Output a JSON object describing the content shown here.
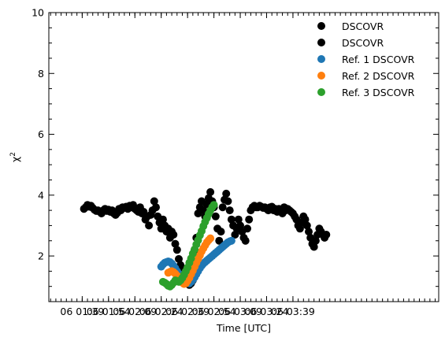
{
  "chart_data": {
    "type": "scatter",
    "title": "",
    "xlabel": "Time [UTC]",
    "ylabel": "χ",
    "ylabel_superscript": "2",
    "xlim": [
      80,
      302
    ],
    "ylim": [
      0.5,
      10
    ],
    "x_unit": "minutes after 00:00 UTC",
    "x_ticks": [
      {
        "value": 99,
        "label": "06 01:39"
      },
      {
        "value": 114,
        "label": "06 01:54"
      },
      {
        "value": 129,
        "label": "06 02:09"
      },
      {
        "value": 144,
        "label": "06 02:24"
      },
      {
        "value": 159,
        "label": "06 02:39"
      },
      {
        "value": 174,
        "label": "06 02:54"
      },
      {
        "value": 189,
        "label": "06 03:09"
      },
      {
        "value": 204,
        "label": "06 03:24"
      },
      {
        "value": 219,
        "label": "06 03:39"
      }
    ],
    "y_ticks": [
      {
        "value": 2,
        "label": "2"
      },
      {
        "value": 4,
        "label": "4"
      },
      {
        "value": 6,
        "label": "6"
      },
      {
        "value": 8,
        "label": "8"
      },
      {
        "value": 10,
        "label": "10"
      }
    ],
    "legend_position": "top-right",
    "series": [
      {
        "name": "DSCOVR",
        "color": "#000000",
        "x": [
          100,
          101,
          102,
          103,
          104,
          105,
          106,
          107,
          108,
          109,
          110,
          111,
          112,
          113,
          114,
          115,
          116,
          117,
          118,
          119,
          120,
          121,
          122,
          123,
          124,
          125,
          126,
          127,
          128,
          129,
          130,
          131,
          132,
          133,
          134,
          135,
          136,
          137,
          138,
          139,
          140,
          141,
          142,
          143,
          144,
          145,
          146,
          147,
          148,
          149,
          150,
          151,
          152,
          153,
          154,
          155,
          156,
          157,
          158,
          159,
          160,
          161,
          162,
          163,
          164,
          165,
          166,
          167,
          168,
          169,
          170,
          171,
          172,
          173,
          174,
          175,
          176,
          177,
          178,
          179,
          180,
          181,
          182,
          183,
          184,
          185,
          186,
          187,
          188,
          189,
          190,
          191,
          192,
          193,
          194,
          195,
          196,
          197,
          198,
          199,
          200,
          201,
          202,
          203,
          204,
          205,
          206,
          207,
          208,
          209,
          210,
          211,
          212,
          213,
          214,
          215,
          216,
          217,
          218,
          219,
          220,
          221,
          222,
          223,
          224,
          225,
          226,
          227,
          228,
          229,
          230,
          231,
          232,
          233,
          234,
          235,
          236,
          237,
          238
        ],
        "y": [
          3.55,
          3.6,
          3.68,
          3.62,
          3.65,
          3.58,
          3.52,
          3.48,
          3.5,
          3.45,
          3.4,
          3.5,
          3.55,
          3.48,
          3.52,
          3.45,
          3.5,
          3.4,
          3.35,
          3.42,
          3.55,
          3.5,
          3.6,
          3.58,
          3.62,
          3.55,
          3.65,
          3.6,
          3.68,
          3.55,
          3.5,
          3.45,
          3.6,
          3.4,
          3.45,
          3.2,
          3.3,
          3.0,
          3.35,
          3.5,
          3.8,
          3.6,
          3.3,
          3.1,
          2.9,
          3.2,
          3.0,
          2.8,
          2.9,
          2.6,
          2.8,
          2.7,
          2.4,
          2.2,
          1.9,
          1.7,
          1.5,
          1.3,
          1.2,
          1.1,
          1.05,
          1.1,
          1.2,
          2.2,
          2.6,
          3.4,
          3.6,
          3.8,
          3.5,
          3.3,
          3.7,
          3.9,
          4.1,
          3.8,
          3.6,
          3.3,
          2.9,
          2.5,
          2.8,
          3.6,
          3.85,
          4.05,
          3.8,
          3.5,
          3.2,
          3.0,
          2.7,
          2.9,
          3.2,
          3.0,
          2.8,
          2.6,
          2.5,
          2.9,
          3.2,
          3.5,
          3.6,
          3.65,
          3.6,
          3.6,
          3.65,
          3.62,
          3.58,
          3.6,
          3.55,
          3.5,
          3.6,
          3.62,
          3.5,
          3.55,
          3.45,
          3.55,
          3.5,
          3.4,
          3.6,
          3.5,
          3.55,
          3.5,
          3.45,
          3.4,
          3.3,
          3.2,
          3.0,
          2.9,
          3.1,
          3.3,
          3.2,
          3.0,
          2.8,
          2.6,
          2.4,
          2.3,
          2.5,
          2.7,
          2.9,
          2.8,
          2.7,
          2.6,
          2.7
        ]
      },
      {
        "name": "DSCOVR",
        "color": "#000000",
        "x": [],
        "y": []
      },
      {
        "name": "Ref. 1 DSCOVR",
        "color": "#1f77b4",
        "x": [
          144,
          145,
          146,
          147,
          148,
          149,
          150,
          151,
          152,
          153,
          154,
          155,
          156,
          157,
          158,
          159,
          160,
          161,
          162,
          163,
          164,
          165,
          166,
          167,
          168,
          169,
          170,
          171,
          172,
          173,
          174,
          175,
          176,
          177,
          178,
          179,
          180,
          181,
          182,
          183,
          184
        ],
        "y": [
          1.65,
          1.72,
          1.78,
          1.8,
          1.82,
          1.8,
          1.75,
          1.68,
          1.6,
          1.5,
          1.42,
          1.35,
          1.28,
          1.22,
          1.18,
          1.12,
          1.1,
          1.15,
          1.22,
          1.3,
          1.4,
          1.5,
          1.6,
          1.68,
          1.75,
          1.8,
          1.85,
          1.9,
          1.95,
          2.0,
          2.05,
          2.1,
          2.15,
          2.2,
          2.25,
          2.3,
          2.35,
          2.4,
          2.45,
          2.48,
          2.5
        ]
      },
      {
        "name": "Ref. 2 DSCOVR",
        "color": "#ff7f0e",
        "x": [
          148,
          149,
          150,
          151,
          152,
          153,
          154,
          155,
          156,
          157,
          158,
          159,
          160,
          161,
          162,
          163,
          164,
          165,
          166,
          167,
          168,
          169,
          170,
          171,
          172
        ],
        "y": [
          1.45,
          1.48,
          1.5,
          1.47,
          1.42,
          1.35,
          1.28,
          1.2,
          1.12,
          1.08,
          1.1,
          1.18,
          1.28,
          1.4,
          1.52,
          1.65,
          1.78,
          1.9,
          2.02,
          2.15,
          2.25,
          2.35,
          2.45,
          2.52,
          2.58
        ]
      },
      {
        "name": "Ref. 3 DSCOVR",
        "color": "#2ca02c",
        "x": [
          145,
          146,
          147,
          148,
          149,
          150,
          151,
          152,
          153,
          154,
          155,
          156,
          157,
          158,
          159,
          160,
          161,
          162,
          163,
          164,
          165,
          166,
          167,
          168,
          169,
          170,
          171,
          172,
          173,
          174
        ],
        "y": [
          1.15,
          1.12,
          1.08,
          1.02,
          1.0,
          1.05,
          1.12,
          1.2,
          1.18,
          1.15,
          1.2,
          1.28,
          1.38,
          1.5,
          1.62,
          1.78,
          1.92,
          2.08,
          2.22,
          2.38,
          2.52,
          2.68,
          2.82,
          2.98,
          3.12,
          3.25,
          3.38,
          3.5,
          3.6,
          3.68
        ]
      }
    ]
  }
}
